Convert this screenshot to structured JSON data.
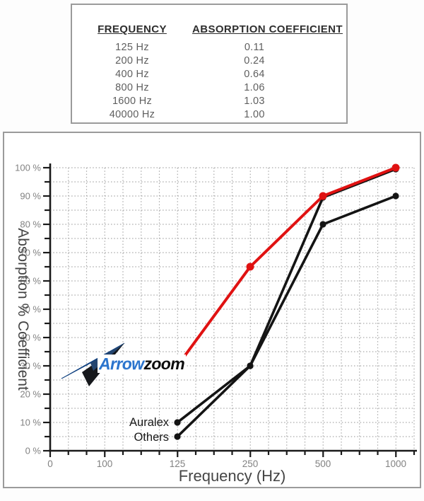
{
  "table": {
    "headers": [
      "FREQUENCY",
      "ABSORPTION COEFFICIENT"
    ],
    "rows": [
      [
        "125 Hz",
        "0.11"
      ],
      [
        "200 Hz",
        "0.24"
      ],
      [
        "400 Hz",
        "0.64"
      ],
      [
        "800 Hz",
        "1.06"
      ],
      [
        "1600 Hz",
        "1.03"
      ],
      [
        "40000 Hz",
        "1.00"
      ]
    ]
  },
  "chart": {
    "y_tick_labels": [
      "100 %",
      "90 %",
      "80 %",
      "70 %",
      "60 %",
      "50 %",
      "40 %",
      "30 %",
      "20 %",
      "10 %",
      "0 %"
    ],
    "x_tick_labels": [
      "0",
      "100",
      "125",
      "250",
      "500",
      "1000"
    ],
    "series_labels": {
      "auralex": "Auralex",
      "others": "Others"
    },
    "logo": {
      "arrow_text": "Arrow",
      "zoom_text": "zoom"
    }
  },
  "chart_data": {
    "type": "line",
    "title": "",
    "xlabel": "Frequency (Hz)",
    "ylabel": "Absorption % Coefficient",
    "x": [
      125,
      250,
      500,
      1000
    ],
    "x_axis_ticks": [
      0,
      100,
      125,
      250,
      500,
      1000
    ],
    "ylim": [
      0,
      100
    ],
    "y_major_step": 10,
    "y_minor_step": 5,
    "grid": true,
    "legend_position": "inline-labels",
    "series": [
      {
        "name": "Arrowzoom",
        "color": "#e01212",
        "values": [
          30,
          65,
          90,
          100
        ]
      },
      {
        "name": "Auralex",
        "color": "#141414",
        "values": [
          10,
          30,
          90,
          100
        ]
      },
      {
        "name": "Others",
        "color": "#141414",
        "values": [
          5,
          30,
          80,
          90
        ]
      }
    ]
  },
  "colors": {
    "red": "#e01212",
    "line_black": "#141414",
    "grid": "#a9a9a9",
    "axis": "#1a1a1a",
    "tick_label": "#828282",
    "axis_title": "#454545",
    "border": "#9b9b9b",
    "logo_blue": "#2b74cd",
    "logo_gradient_top": "#5ca3ec",
    "logo_gradient_bottom": "#0d4fa0"
  }
}
